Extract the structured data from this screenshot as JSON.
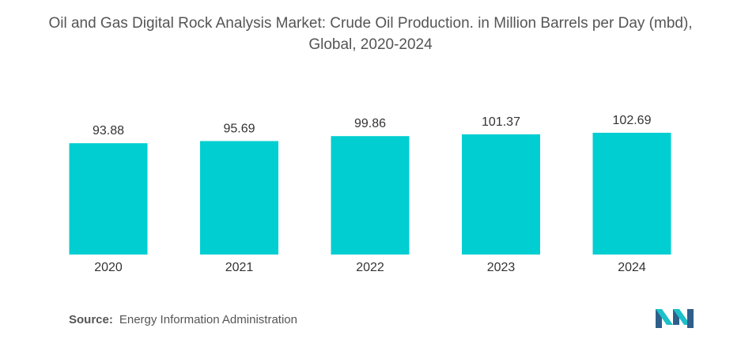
{
  "chart_data": {
    "type": "bar",
    "title": "Oil and Gas Digital Rock Analysis Market: Crude Oil Production. in Million Barrels per Day (mbd), Global, 2020-2024",
    "categories": [
      "2020",
      "2021",
      "2022",
      "2023",
      "2024"
    ],
    "values": [
      93.88,
      95.69,
      99.86,
      101.37,
      102.69
    ],
    "value_labels": [
      "93.88",
      "95.69",
      "99.86",
      "101.37",
      "102.69"
    ],
    "xlabel": "",
    "ylabel": "",
    "ylim": [
      0,
      110
    ],
    "grid": false,
    "legend": "none",
    "bar_color": "#00CED1"
  },
  "source": {
    "prefix": "Source:",
    "text": "Energy Information Administration"
  },
  "logo": {
    "icon": "mordor-intelligence-logo",
    "colors": [
      "#2E5F8A",
      "#1CC0C8"
    ]
  }
}
